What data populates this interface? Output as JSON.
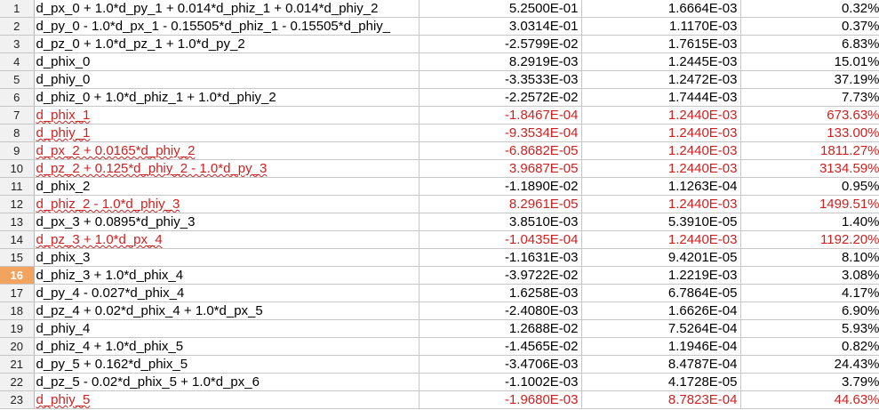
{
  "colors": {
    "warning_text": "#d01f1f",
    "selected_row_header": "#f4a35e",
    "row_header_bg": "#f1f1f1",
    "gridline": "#c7c7c7"
  },
  "selected_row": 16,
  "rows": [
    {
      "n": "1",
      "a": "d_px_0 + 1.0*d_py_1 + 0.014*d_phiz_1 + 0.014*d_phiy_2",
      "b": "5.2500E-01",
      "c": "1.6664E-03",
      "d": "0.32%",
      "warn": false
    },
    {
      "n": "2",
      "a": "d_py_0 - 1.0*d_px_1 - 0.15505*d_phiz_1 - 0.15505*d_phiy_",
      "b": "3.0314E-01",
      "c": "1.1170E-03",
      "d": "0.37%",
      "warn": false
    },
    {
      "n": "3",
      "a": "d_pz_0 + 1.0*d_pz_1 + 1.0*d_py_2",
      "b": "-2.5799E-02",
      "c": "1.7615E-03",
      "d": "6.83%",
      "warn": false
    },
    {
      "n": "4",
      "a": "d_phix_0",
      "b": "8.2919E-03",
      "c": "1.2445E-03",
      "d": "15.01%",
      "warn": false
    },
    {
      "n": "5",
      "a": "d_phiy_0",
      "b": "-3.3533E-03",
      "c": "1.2472E-03",
      "d": "37.19%",
      "warn": false
    },
    {
      "n": "6",
      "a": "d_phiz_0 + 1.0*d_phiz_1 + 1.0*d_phiy_2",
      "b": "-2.2572E-02",
      "c": "1.7444E-03",
      "d": "7.73%",
      "warn": false
    },
    {
      "n": "7",
      "a": "d_phix_1",
      "b": "-1.8467E-04",
      "c": "1.2440E-03",
      "d": "673.63%",
      "warn": true
    },
    {
      "n": "8",
      "a": "d_phiy_1",
      "b": "-9.3534E-04",
      "c": "1.2440E-03",
      "d": "133.00%",
      "warn": true
    },
    {
      "n": "9",
      "a": "d_px_2 + 0.0165*d_phiy_2",
      "b": "-6.8682E-05",
      "c": "1.2440E-03",
      "d": "1811.27%",
      "warn": true
    },
    {
      "n": "10",
      "a": "d_pz_2 + 0.125*d_phiy_2 - 1.0*d_py_3",
      "b": "3.9687E-05",
      "c": "1.2440E-03",
      "d": "3134.59%",
      "warn": true
    },
    {
      "n": "11",
      "a": "d_phix_2",
      "b": "-1.1890E-02",
      "c": "1.1263E-04",
      "d": "0.95%",
      "warn": false
    },
    {
      "n": "12",
      "a": "d_phiz_2 - 1.0*d_phiy_3",
      "b": "8.2961E-05",
      "c": "1.2440E-03",
      "d": "1499.51%",
      "warn": true
    },
    {
      "n": "13",
      "a": "d_px_3 + 0.0895*d_phiy_3",
      "b": "3.8510E-03",
      "c": "5.3910E-05",
      "d": "1.40%",
      "warn": false
    },
    {
      "n": "14",
      "a": "d_pz_3 + 1.0*d_px_4",
      "b": "-1.0435E-04",
      "c": "1.2440E-03",
      "d": "1192.20%",
      "warn": true
    },
    {
      "n": "15",
      "a": "d_phix_3",
      "b": "-1.1631E-03",
      "c": "9.4201E-05",
      "d": "8.10%",
      "warn": false
    },
    {
      "n": "16",
      "a": "d_phiz_3 + 1.0*d_phix_4",
      "b": "-3.9722E-02",
      "c": "1.2219E-03",
      "d": "3.08%",
      "warn": false
    },
    {
      "n": "17",
      "a": "d_py_4 - 0.027*d_phix_4",
      "b": "1.6258E-03",
      "c": "6.7864E-05",
      "d": "4.17%",
      "warn": false
    },
    {
      "n": "18",
      "a": "d_pz_4 + 0.02*d_phix_4 + 1.0*d_px_5",
      "b": "-2.4080E-03",
      "c": "1.6626E-04",
      "d": "6.90%",
      "warn": false
    },
    {
      "n": "19",
      "a": "d_phiy_4",
      "b": "1.2688E-02",
      "c": "7.5264E-04",
      "d": "5.93%",
      "warn": false
    },
    {
      "n": "20",
      "a": "d_phiz_4 + 1.0*d_phix_5",
      "b": "-1.4565E-02",
      "c": "1.1946E-04",
      "d": "0.82%",
      "warn": false
    },
    {
      "n": "21",
      "a": "d_py_5 + 0.162*d_phix_5",
      "b": "-3.4706E-03",
      "c": "8.4787E-04",
      "d": "24.43%",
      "warn": false
    },
    {
      "n": "22",
      "a": "d_pz_5 - 0.02*d_phix_5 + 1.0*d_px_6",
      "b": "-1.1002E-03",
      "c": "4.1728E-05",
      "d": "3.79%",
      "warn": false
    },
    {
      "n": "23",
      "a": "d_phiy_5",
      "b": "-1.9680E-03",
      "c": "8.7823E-04",
      "d": "44.63%",
      "warn": true
    }
  ]
}
